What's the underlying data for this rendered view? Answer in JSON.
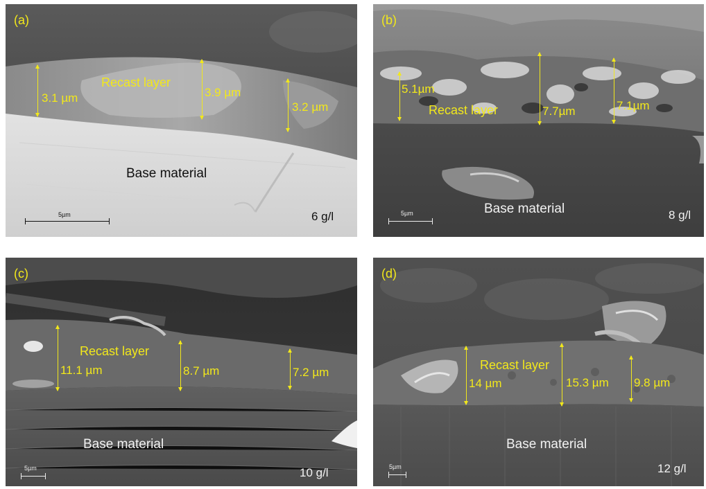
{
  "panels": {
    "a": {
      "tag": "(a)",
      "recast_label": "Recast layer",
      "measurements": [
        "3.1 µm",
        "3.9 µm",
        "3.2 µm"
      ],
      "base_label": "Base material",
      "concentration": "6 g/l",
      "scale_bar": "5µm"
    },
    "b": {
      "tag": "(b)",
      "recast_label": "Recast layer",
      "measurements": [
        "5.1µm",
        "7.7µm",
        "7.1µm"
      ],
      "base_label": "Base material",
      "concentration": "8 g/l",
      "scale_bar": "5µm"
    },
    "c": {
      "tag": "(c)",
      "recast_label": "Recast layer",
      "measurements": [
        "11.1 µm",
        "8.7 µm",
        "7.2 µm"
      ],
      "base_label": "Base material",
      "concentration": "10 g/l",
      "scale_bar": "5µm"
    },
    "d": {
      "tag": "(d)",
      "recast_label": "Recast layer",
      "measurements": [
        "14 µm",
        "15.3 µm",
        "9.8 µm"
      ],
      "base_label": "Base material",
      "concentration": "12 g/l",
      "scale_bar": "5µm"
    }
  },
  "colors": {
    "annotation": "#f2e81b",
    "background": "#ffffff"
  }
}
